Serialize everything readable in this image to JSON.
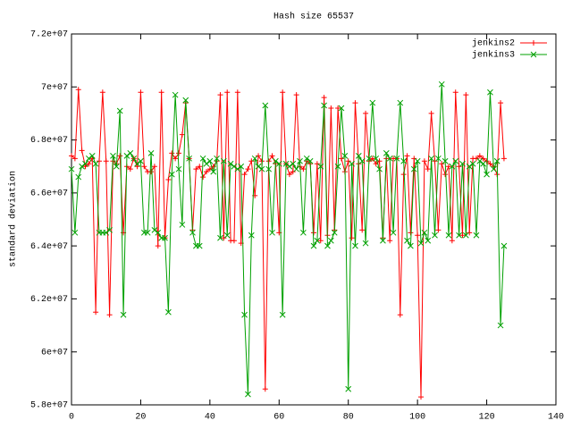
{
  "chart_data": {
    "type": "line",
    "title": "Hash size 65537",
    "y_label": "standard deviation",
    "x": [
      0,
      1,
      2,
      3,
      4,
      5,
      6,
      7,
      8,
      9,
      10,
      11,
      12,
      13,
      14,
      15,
      16,
      17,
      18,
      19,
      20,
      21,
      22,
      23,
      24,
      25,
      26,
      27,
      28,
      29,
      30,
      31,
      32,
      33,
      34,
      35,
      36,
      37,
      38,
      39,
      40,
      41,
      42,
      43,
      44,
      45,
      46,
      47,
      48,
      49,
      50,
      51,
      52,
      53,
      54,
      55,
      56,
      57,
      58,
      59,
      60,
      61,
      62,
      63,
      64,
      65,
      66,
      67,
      68,
      69,
      70,
      71,
      72,
      73,
      74,
      75,
      76,
      77,
      78,
      79,
      80,
      81,
      82,
      83,
      84,
      85,
      86,
      87,
      88,
      89,
      90,
      91,
      92,
      93,
      94,
      95,
      96,
      97,
      98,
      99,
      100,
      101,
      102,
      103,
      104,
      105,
      106,
      107,
      108,
      109,
      110,
      111,
      112,
      113,
      114,
      115,
      116,
      117,
      118,
      119,
      120,
      121,
      122,
      123,
      124,
      125
    ],
    "series": [
      {
        "name": "jenkins2",
        "color": "#ff0000",
        "marker": "plus",
        "values": [
          67400000,
          67300000,
          69900000,
          67600000,
          67000000,
          67100000,
          67300000,
          61500000,
          67200000,
          69800000,
          67200000,
          61400000,
          67200000,
          67100000,
          67400000,
          64500000,
          67000000,
          66900000,
          67300000,
          67000000,
          69800000,
          67000000,
          66800000,
          66800000,
          67000000,
          64000000,
          69800000,
          64300000,
          66500000,
          67500000,
          67300000,
          67500000,
          68200000,
          69400000,
          67300000,
          64600000,
          66900000,
          67000000,
          66600000,
          66800000,
          66900000,
          67000000,
          67200000,
          69700000,
          64300000,
          69800000,
          64200000,
          64200000,
          69800000,
          64100000,
          66700000,
          66900000,
          67200000,
          65900000,
          67400000,
          67200000,
          58600000,
          67200000,
          67400000,
          67100000,
          64500000,
          69800000,
          67100000,
          66700000,
          66800000,
          69700000,
          67000000,
          66900000,
          67200000,
          67100000,
          64500000,
          67100000,
          64200000,
          69600000,
          64400000,
          69200000,
          64600000,
          69200000,
          67300000,
          66800000,
          67200000,
          64300000,
          69400000,
          67100000,
          64600000,
          69000000,
          67200000,
          67300000,
          67100000,
          67200000,
          64300000,
          67300000,
          64200000,
          67300000,
          67300000,
          61400000,
          66700000,
          67400000,
          64500000,
          67300000,
          64400000,
          58300000,
          67200000,
          66900000,
          69000000,
          67200000,
          64600000,
          67100000,
          66700000,
          67000000,
          64200000,
          69800000,
          67000000,
          64400000,
          69700000,
          64500000,
          67300000,
          67300000,
          67400000,
          67300000,
          67200000,
          67100000,
          67000000,
          66700000,
          69400000,
          67300000
        ]
      },
      {
        "name": "jenkins3",
        "color": "#00a000",
        "marker": "cross",
        "values": [
          66900000,
          64500000,
          66600000,
          67000000,
          67100000,
          67300000,
          67400000,
          67100000,
          64500000,
          64500000,
          64500000,
          64600000,
          67400000,
          67000000,
          69100000,
          61400000,
          67400000,
          67500000,
          67300000,
          67100000,
          67200000,
          64500000,
          64500000,
          67500000,
          64600000,
          64500000,
          64300000,
          64300000,
          61500000,
          66700000,
          69700000,
          66900000,
          64800000,
          69500000,
          67300000,
          64500000,
          64000000,
          64000000,
          67300000,
          67100000,
          67200000,
          66800000,
          67300000,
          64300000,
          67200000,
          64400000,
          67100000,
          67000000,
          66900000,
          67000000,
          61400000,
          58400000,
          64400000,
          67300000,
          67000000,
          66900000,
          69300000,
          66900000,
          64500000,
          67200000,
          67100000,
          61400000,
          67100000,
          67000000,
          67100000,
          66900000,
          67200000,
          64500000,
          67300000,
          67200000,
          64000000,
          64200000,
          67000000,
          69300000,
          64000000,
          64200000,
          64500000,
          67000000,
          69200000,
          67400000,
          58600000,
          67100000,
          64000000,
          67400000,
          67200000,
          64100000,
          67300000,
          69400000,
          67300000,
          66900000,
          64200000,
          67500000,
          67300000,
          64500000,
          67300000,
          69400000,
          67200000,
          64200000,
          64000000,
          66900000,
          67200000,
          64100000,
          64500000,
          64200000,
          67300000,
          64400000,
          67300000,
          70100000,
          67200000,
          64400000,
          67000000,
          67200000,
          64400000,
          67100000,
          64400000,
          67000000,
          67100000,
          64400000,
          67200000,
          67100000,
          66700000,
          69800000,
          66900000,
          67200000,
          61000000,
          64000000
        ]
      }
    ],
    "xlim": [
      0,
      140
    ],
    "xticks": [
      0,
      20,
      40,
      60,
      80,
      100,
      120,
      140
    ],
    "ylim": [
      58000000,
      72000000
    ],
    "yticks": [
      {
        "value": 58000000,
        "label": "5.8e+07"
      },
      {
        "value": 60000000,
        "label": "6e+07"
      },
      {
        "value": 62000000,
        "label": "6.2e+07"
      },
      {
        "value": 64000000,
        "label": "6.4e+07"
      },
      {
        "value": 66000000,
        "label": "6.6e+07"
      },
      {
        "value": 68000000,
        "label": "6.8e+07"
      },
      {
        "value": 70000000,
        "label": "7e+07"
      },
      {
        "value": 72000000,
        "label": "7.2e+07"
      }
    ],
    "legend": "upper right"
  }
}
